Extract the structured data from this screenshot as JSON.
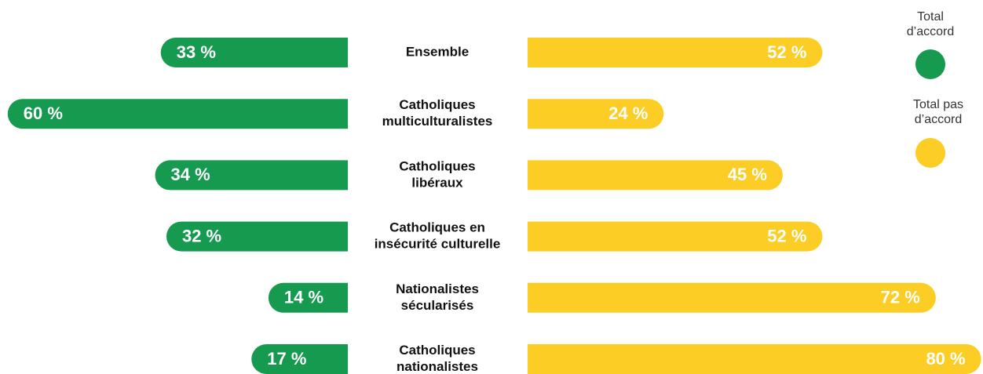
{
  "chart_data": {
    "type": "diverging_bar",
    "categories": [
      [
        "Ensemble"
      ],
      [
        "Catholiques",
        "multiculturalistes"
      ],
      [
        "Catholiques",
        "libéraux"
      ],
      [
        "Catholiques en",
        "insécurité culturelle"
      ],
      [
        "Nationalistes",
        "sécularisés"
      ],
      [
        "Catholiques",
        "nationalistes"
      ]
    ],
    "series": [
      {
        "name": "Total d’accord",
        "color": "#159a4f",
        "side": "left",
        "values": [
          33,
          60,
          34,
          32,
          14,
          17
        ],
        "value_labels": [
          "33 %",
          "60 %",
          "34 %",
          "32 %",
          "14 %",
          "17 %"
        ]
      },
      {
        "name": "Total pas d’accord",
        "color": "#fccd24",
        "side": "right",
        "values": [
          52,
          24,
          45,
          52,
          72,
          80
        ],
        "value_labels": [
          "52 %",
          "24 %",
          "45 %",
          "52 %",
          "72 %",
          "80 %"
        ]
      }
    ]
  }
}
